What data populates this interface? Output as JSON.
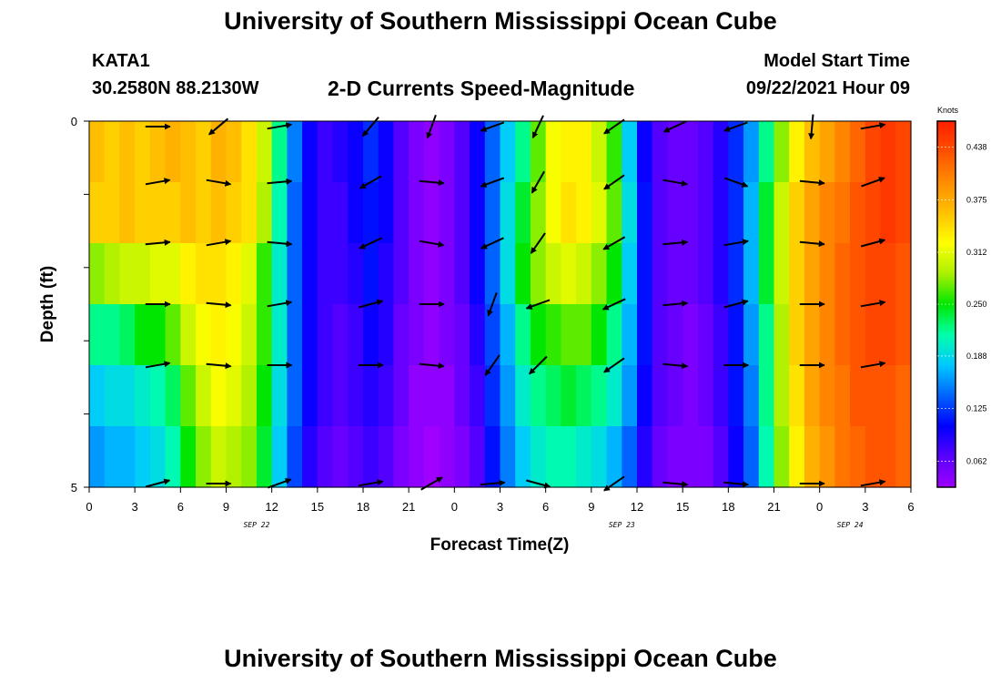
{
  "header": {
    "title": "University of Southern Mississippi Ocean Cube",
    "station": "KATA1",
    "coords": "30.2580N  88.2130W",
    "model_start_label": "Model Start Time",
    "model_start_time": "09/22/2021 Hour 09",
    "footer_title": "University of Southern Mississippi Ocean Cube"
  },
  "chart_data": {
    "type": "heatmap",
    "title": "2-D Currents Speed-Magnitude",
    "xlabel": "Forecast Time(Z)",
    "ylabel": "Depth (ft)",
    "x_ticks": [
      "0",
      "3",
      "6",
      "9",
      "12",
      "15",
      "18",
      "21",
      "0",
      "3",
      "6",
      "9",
      "12",
      "15",
      "18",
      "21",
      "0",
      "3",
      "6"
    ],
    "date_labels": [
      {
        "label": "SEP 22",
        "tick_index": 11
      },
      {
        "label": "SEP 23",
        "tick_index": 35
      },
      {
        "label": "SEP 24",
        "tick_index": 50
      }
    ],
    "y_ticks": [
      "0",
      "5"
    ],
    "ylim": [
      0,
      5
    ],
    "time_step_hours": 1,
    "n_times": 54,
    "depth_layers": [
      0,
      1,
      2,
      3,
      4,
      5
    ],
    "speed_knots": [
      [
        0.36,
        0.35,
        0.36,
        0.35,
        0.36,
        0.37,
        0.36,
        0.35,
        0.37,
        0.36,
        0.34,
        0.3,
        0.22,
        0.15,
        0.1,
        0.08,
        0.09,
        0.1,
        0.12,
        0.1,
        0.07,
        0.05,
        0.04,
        0.05,
        0.07,
        0.1,
        0.14,
        0.18,
        0.22,
        0.27,
        0.32,
        0.33,
        0.33,
        0.3,
        0.26,
        0.18,
        0.1,
        0.07,
        0.06,
        0.06,
        0.07,
        0.09,
        0.12,
        0.16,
        0.22,
        0.28,
        0.33,
        0.36,
        0.38,
        0.4,
        0.42,
        0.44,
        0.45,
        0.44
      ],
      [
        0.35,
        0.35,
        0.36,
        0.35,
        0.35,
        0.35,
        0.36,
        0.35,
        0.36,
        0.35,
        0.34,
        0.29,
        0.21,
        0.14,
        0.1,
        0.08,
        0.08,
        0.1,
        0.11,
        0.1,
        0.07,
        0.05,
        0.04,
        0.05,
        0.07,
        0.1,
        0.14,
        0.19,
        0.24,
        0.28,
        0.32,
        0.34,
        0.33,
        0.31,
        0.27,
        0.19,
        0.11,
        0.07,
        0.06,
        0.06,
        0.07,
        0.09,
        0.12,
        0.17,
        0.24,
        0.3,
        0.35,
        0.38,
        0.4,
        0.41,
        0.43,
        0.44,
        0.45,
        0.44
      ],
      [
        0.28,
        0.29,
        0.3,
        0.3,
        0.31,
        0.31,
        0.33,
        0.34,
        0.34,
        0.33,
        0.31,
        0.26,
        0.2,
        0.14,
        0.1,
        0.08,
        0.08,
        0.09,
        0.11,
        0.09,
        0.07,
        0.05,
        0.04,
        0.05,
        0.07,
        0.1,
        0.14,
        0.19,
        0.25,
        0.28,
        0.3,
        0.31,
        0.3,
        0.28,
        0.25,
        0.18,
        0.11,
        0.07,
        0.06,
        0.06,
        0.07,
        0.09,
        0.12,
        0.17,
        0.24,
        0.3,
        0.35,
        0.38,
        0.4,
        0.42,
        0.43,
        0.44,
        0.44,
        0.43
      ],
      [
        0.22,
        0.22,
        0.23,
        0.25,
        0.25,
        0.27,
        0.3,
        0.32,
        0.33,
        0.32,
        0.3,
        0.26,
        0.2,
        0.14,
        0.1,
        0.08,
        0.07,
        0.08,
        0.1,
        0.09,
        0.06,
        0.05,
        0.04,
        0.05,
        0.06,
        0.09,
        0.13,
        0.17,
        0.22,
        0.25,
        0.26,
        0.27,
        0.27,
        0.25,
        0.22,
        0.17,
        0.11,
        0.07,
        0.06,
        0.05,
        0.06,
        0.08,
        0.11,
        0.16,
        0.22,
        0.29,
        0.35,
        0.38,
        0.4,
        0.42,
        0.43,
        0.44,
        0.44,
        0.43
      ],
      [
        0.18,
        0.19,
        0.19,
        0.2,
        0.21,
        0.23,
        0.27,
        0.3,
        0.32,
        0.31,
        0.29,
        0.25,
        0.19,
        0.14,
        0.1,
        0.08,
        0.07,
        0.08,
        0.09,
        0.08,
        0.06,
        0.04,
        0.04,
        0.04,
        0.06,
        0.08,
        0.12,
        0.16,
        0.2,
        0.22,
        0.23,
        0.24,
        0.23,
        0.22,
        0.2,
        0.16,
        0.1,
        0.07,
        0.06,
        0.05,
        0.06,
        0.08,
        0.11,
        0.15,
        0.22,
        0.29,
        0.34,
        0.38,
        0.4,
        0.41,
        0.43,
        0.43,
        0.43,
        0.42
      ],
      [
        0.16,
        0.17,
        0.17,
        0.18,
        0.19,
        0.21,
        0.25,
        0.28,
        0.3,
        0.29,
        0.28,
        0.24,
        0.18,
        0.13,
        0.09,
        0.07,
        0.06,
        0.07,
        0.08,
        0.07,
        0.05,
        0.04,
        0.03,
        0.04,
        0.05,
        0.07,
        0.11,
        0.15,
        0.18,
        0.2,
        0.21,
        0.21,
        0.2,
        0.19,
        0.17,
        0.14,
        0.09,
        0.06,
        0.05,
        0.05,
        0.05,
        0.07,
        0.1,
        0.14,
        0.21,
        0.28,
        0.33,
        0.37,
        0.39,
        0.41,
        0.42,
        0.43,
        0.43,
        0.42
      ]
    ],
    "arrow_columns": [
      4,
      8,
      12,
      18,
      22,
      26,
      29,
      34,
      38,
      42,
      47,
      51
    ],
    "arrows_deg": [
      [
        90,
        230,
        80,
        220,
        200,
        250,
        205,
        235,
        245,
        250,
        185,
        80
      ],
      [
        80,
        100,
        85,
        240,
        95,
        250,
        210,
        235,
        100,
        110,
        95,
        70
      ],
      [
        85,
        80,
        95,
        245,
        100,
        245,
        215,
        240,
        85,
        80,
        95,
        75
      ],
      [
        90,
        95,
        80,
        75,
        90,
        200,
        250,
        245,
        85,
        75,
        90,
        80
      ],
      [
        80,
        95,
        90,
        90,
        95,
        215,
        225,
        235,
        95,
        90,
        90,
        80
      ],
      [
        75,
        90,
        70,
        80,
        60,
        85,
        105,
        235,
        95,
        95,
        90,
        80
      ]
    ],
    "colorbar": {
      "label": "Knots",
      "ticks": [
        "0.438",
        "0.375",
        "0.312",
        "0.250",
        "0.188",
        "0.125",
        "0.062"
      ],
      "min": 0.031,
      "max": 0.469
    },
    "colors": [
      "#a000ff",
      "#5a00ff",
      "#0000ff",
      "#0064ff",
      "#00c8ff",
      "#00ffaa",
      "#00e600",
      "#aaf000",
      "#ffff00",
      "#ffc000",
      "#ff8c00",
      "#ff5000",
      "#ff1e00"
    ]
  }
}
